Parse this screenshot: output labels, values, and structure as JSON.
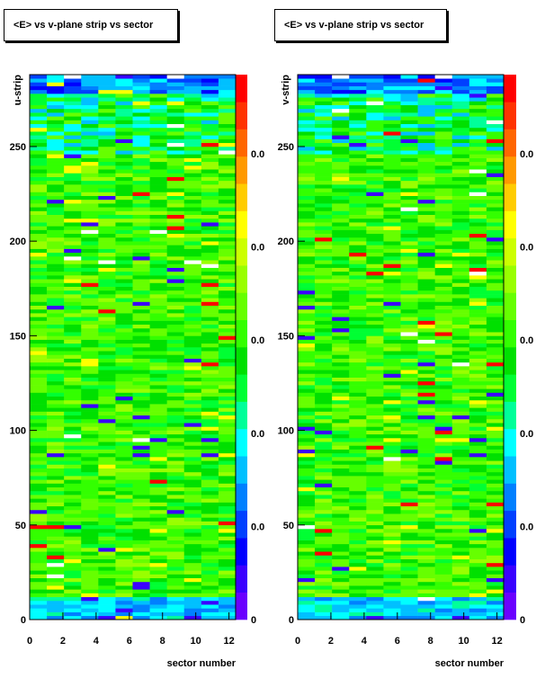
{
  "chart_data": [
    {
      "type": "heatmap",
      "title": "<E> vs v-plane strip vs sector",
      "xlabel": "",
      "ylabel": "u-strip",
      "xlim": [
        0,
        12.4
      ],
      "ylim": [
        0,
        288
      ],
      "x_ticks": [
        "0",
        "2",
        "4",
        "6",
        "8",
        "10",
        "12"
      ],
      "y_ticks": [
        "0",
        "50",
        "100",
        "150",
        "200",
        "250"
      ],
      "colorbar_ticks": [
        "0",
        "0.0",
        "0.0",
        "0.0",
        "0.0",
        "0.0"
      ],
      "columns": 12,
      "rows": 144
    },
    {
      "type": "heatmap",
      "title": "<E> vs v-plane strip vs sector",
      "xlabel": "sector number",
      "ylabel": "v-strip",
      "xlim": [
        0,
        12.4
      ],
      "ylim": [
        0,
        288
      ],
      "x_ticks": [
        "0",
        "2",
        "4",
        "6",
        "8",
        "10",
        "12"
      ],
      "y_ticks": [
        "0",
        "50",
        "100",
        "150",
        "200",
        "250"
      ],
      "colorbar_ticks": [
        "0",
        "0.0",
        "0.0",
        "0.0",
        "0.0",
        "0.0"
      ],
      "columns": 12,
      "rows": 144
    }
  ],
  "bottom_label_left": "sector number",
  "palette": [
    "#6a00ff",
    "#3a00ff",
    "#0000ff",
    "#0040ff",
    "#0080ff",
    "#00c0ff",
    "#00ffff",
    "#00ff99",
    "#00ff33",
    "#00e000",
    "#33ff00",
    "#66ff00",
    "#99ff00",
    "#ccff00",
    "#ffff00",
    "#ffcc00",
    "#ff9900",
    "#ff6600",
    "#ff3300",
    "#ff0000"
  ]
}
